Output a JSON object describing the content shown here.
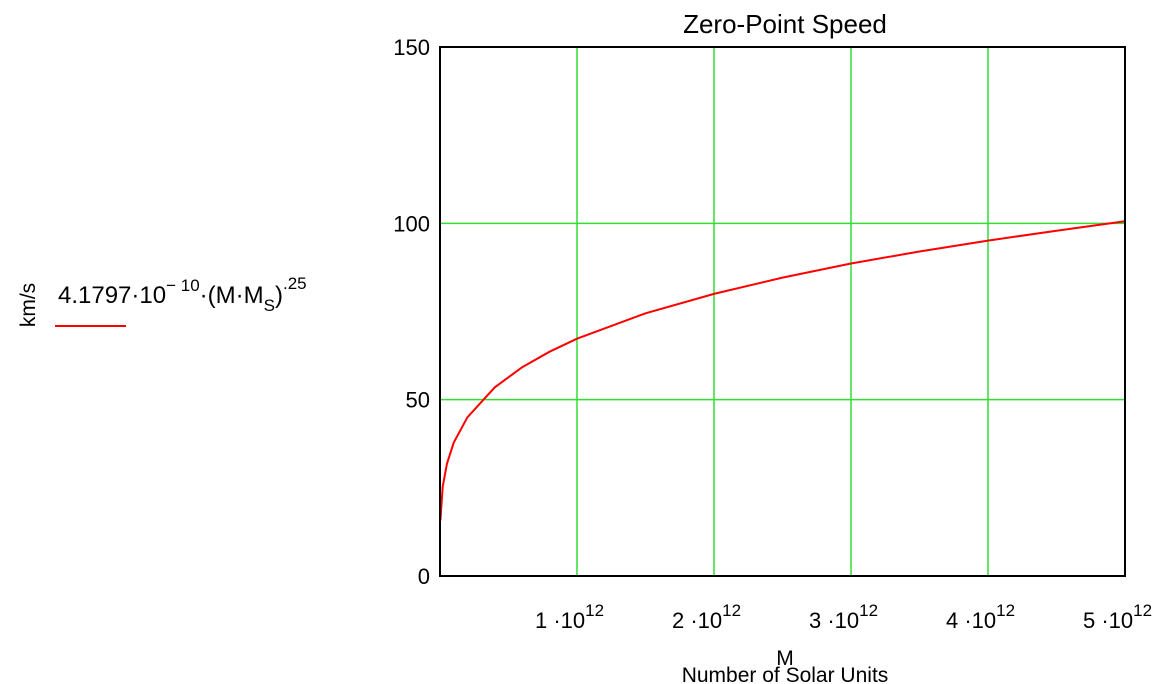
{
  "chart_data": {
    "type": "line",
    "title": "Zero-Point Speed",
    "ylabel": "km/s",
    "xlabel_var": "M",
    "xlabel": "Number of Solar Units",
    "xlim": [
      0,
      5000000000000.0
    ],
    "ylim": [
      0,
      150
    ],
    "grid": true,
    "grid_color": "#33dd33",
    "y_ticks": [
      "0",
      "50",
      "100",
      "150"
    ],
    "x_ticks": [
      {
        "value": 1000000000000.0,
        "mantissa": "1",
        "dot": "·10",
        "exp": "12"
      },
      {
        "value": 2000000000000.0,
        "mantissa": "2",
        "dot": "·10",
        "exp": "12"
      },
      {
        "value": 3000000000000.0,
        "mantissa": "3",
        "dot": "·10",
        "exp": "12"
      },
      {
        "value": 4000000000000.0,
        "mantissa": "4",
        "dot": "·10",
        "exp": "12"
      },
      {
        "value": 5000000000000.0,
        "mantissa": "5",
        "dot": "·10",
        "exp": "12"
      }
    ],
    "series": [
      {
        "legend": {
          "coef": "4.1797·10",
          "coef_exp": "− 10",
          "body": "·(M·M",
          "sub": "S",
          "close": ")",
          "power": ".25"
        },
        "color": "#ff0000",
        "formula": "v = 4.1797e-10 * (M * Ms)^0.25",
        "x": [
          3000000000.0,
          20000000000.0,
          50000000000.0,
          100000000000.0,
          200000000000.0,
          400000000000.0,
          600000000000.0,
          800000000000.0,
          1000000000000.0,
          1500000000000.0,
          2000000000000.0,
          2500000000000.0,
          3000000000000.0,
          3500000000000.0,
          4000000000000.0,
          4500000000000.0,
          5000000000000.0
        ],
        "y": [
          15.7,
          25.3,
          31.8,
          37.8,
          45.0,
          53.5,
          59.2,
          63.6,
          67.3,
          74.5,
          80.0,
          84.6,
          88.6,
          92.0,
          95.1,
          97.9,
          100.6
        ]
      }
    ]
  }
}
